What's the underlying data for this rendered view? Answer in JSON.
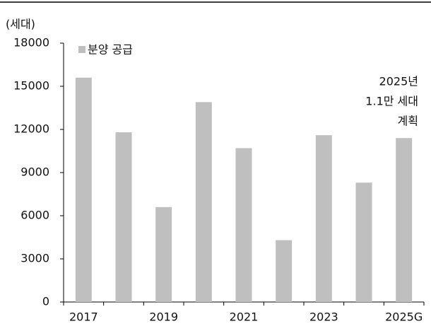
{
  "chart_data": {
    "type": "bar",
    "y_axis_label": "(세대)",
    "categories": [
      "2017",
      null,
      "2019",
      null,
      "2021",
      null,
      "2023",
      null,
      "2025G"
    ],
    "series": [
      {
        "name": "분양 공급",
        "color": "#bfbfbf",
        "values": [
          15600,
          11800,
          6600,
          13900,
          10700,
          4300,
          11600,
          8300,
          11400
        ]
      }
    ],
    "ylim": [
      0,
      18000
    ],
    "yticks": [
      0,
      3000,
      6000,
      9000,
      12000,
      15000,
      18000
    ],
    "legend": "top-left",
    "annotation": [
      "2025년",
      "1.1만 세대",
      "계획"
    ]
  }
}
